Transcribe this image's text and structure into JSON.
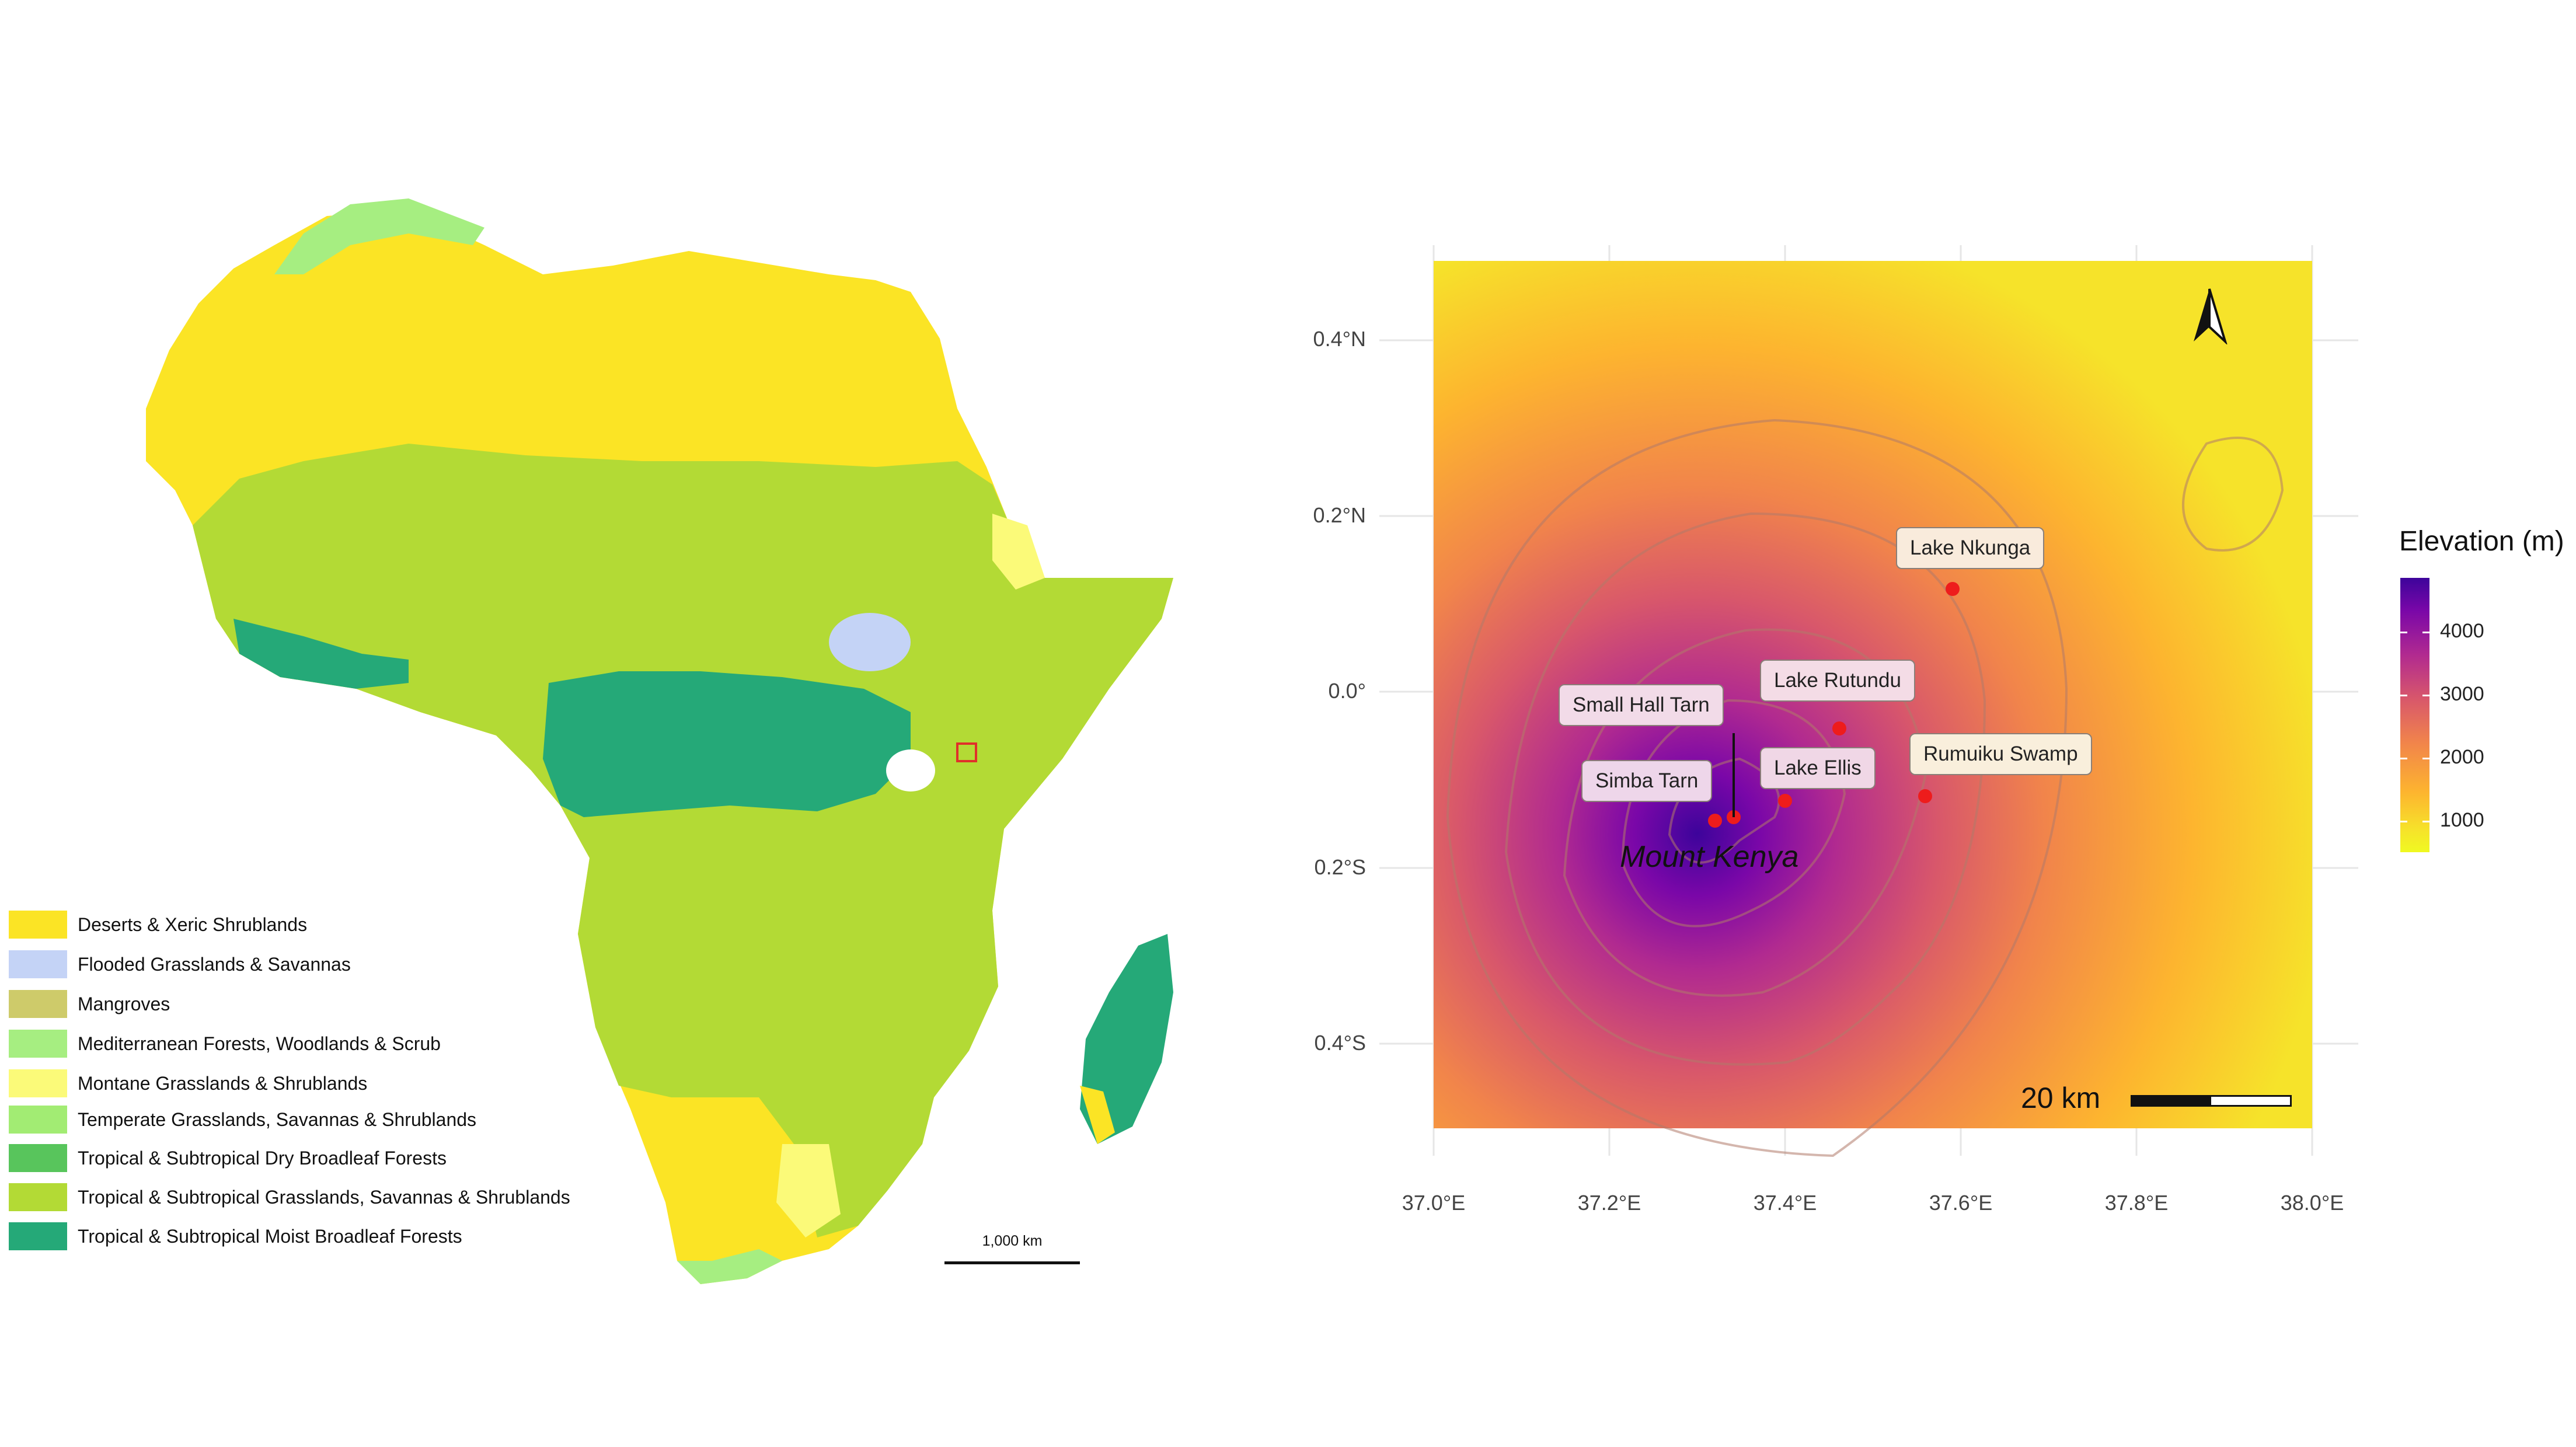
{
  "africa_map": {
    "legend": [
      {
        "label": "Deserts & Xeric Shrublands",
        "color": "#fbe425"
      },
      {
        "label": "Flooded Grasslands & Savannas",
        "color": "#c4d3f6"
      },
      {
        "label": "Mangroves",
        "color": "#cecb6a"
      },
      {
        "label": "Mediterranean Forests, Woodlands & Scrub",
        "color": "#a6ee81"
      },
      {
        "label": "Montane Grasslands & Shrublands",
        "color": "#fbfa79"
      },
      {
        "label": "Temperate Grasslands, Savannas & Shrublands",
        "color": "#a2ec73"
      },
      {
        "label": "Tropical & Subtropical Dry Broadleaf Forests",
        "color": "#58c55c"
      },
      {
        "label": "Tropical & Subtropical Grasslands, Savannas & Shrublands",
        "color": "#b3da35"
      },
      {
        "label": "Tropical & Subtropical Moist Broadleaf Forests",
        "color": "#25a978"
      }
    ],
    "scale_bar_label": "1,000 km",
    "inset_box_color": "#e0302a"
  },
  "kenya_map": {
    "y_ticks": [
      "0.4°N",
      "0.2°N",
      "0.0°",
      "0.2°S",
      "0.4°S"
    ],
    "x_ticks": [
      "37.0°E",
      "37.2°E",
      "37.4°E",
      "37.6°E",
      "37.8°E",
      "38.0°E"
    ],
    "sites": [
      {
        "name": "Lake Nkunga"
      },
      {
        "name": "Lake Rutundu"
      },
      {
        "name": "Small Hall Tarn"
      },
      {
        "name": "Rumuiku Swamp"
      },
      {
        "name": "Simba Tarn"
      },
      {
        "name": "Lake Ellis"
      }
    ],
    "feature_label": "Mount Kenya",
    "scale_bar_label": "20 km",
    "point_color": "#ee1c1c",
    "colorbar": {
      "title": "Elevation (m)",
      "ticks": [
        "4000",
        "3000",
        "2000",
        "1000"
      ],
      "colors": [
        "#3d049b",
        "#b12a90",
        "#f1844b",
        "#f0f921"
      ]
    }
  }
}
